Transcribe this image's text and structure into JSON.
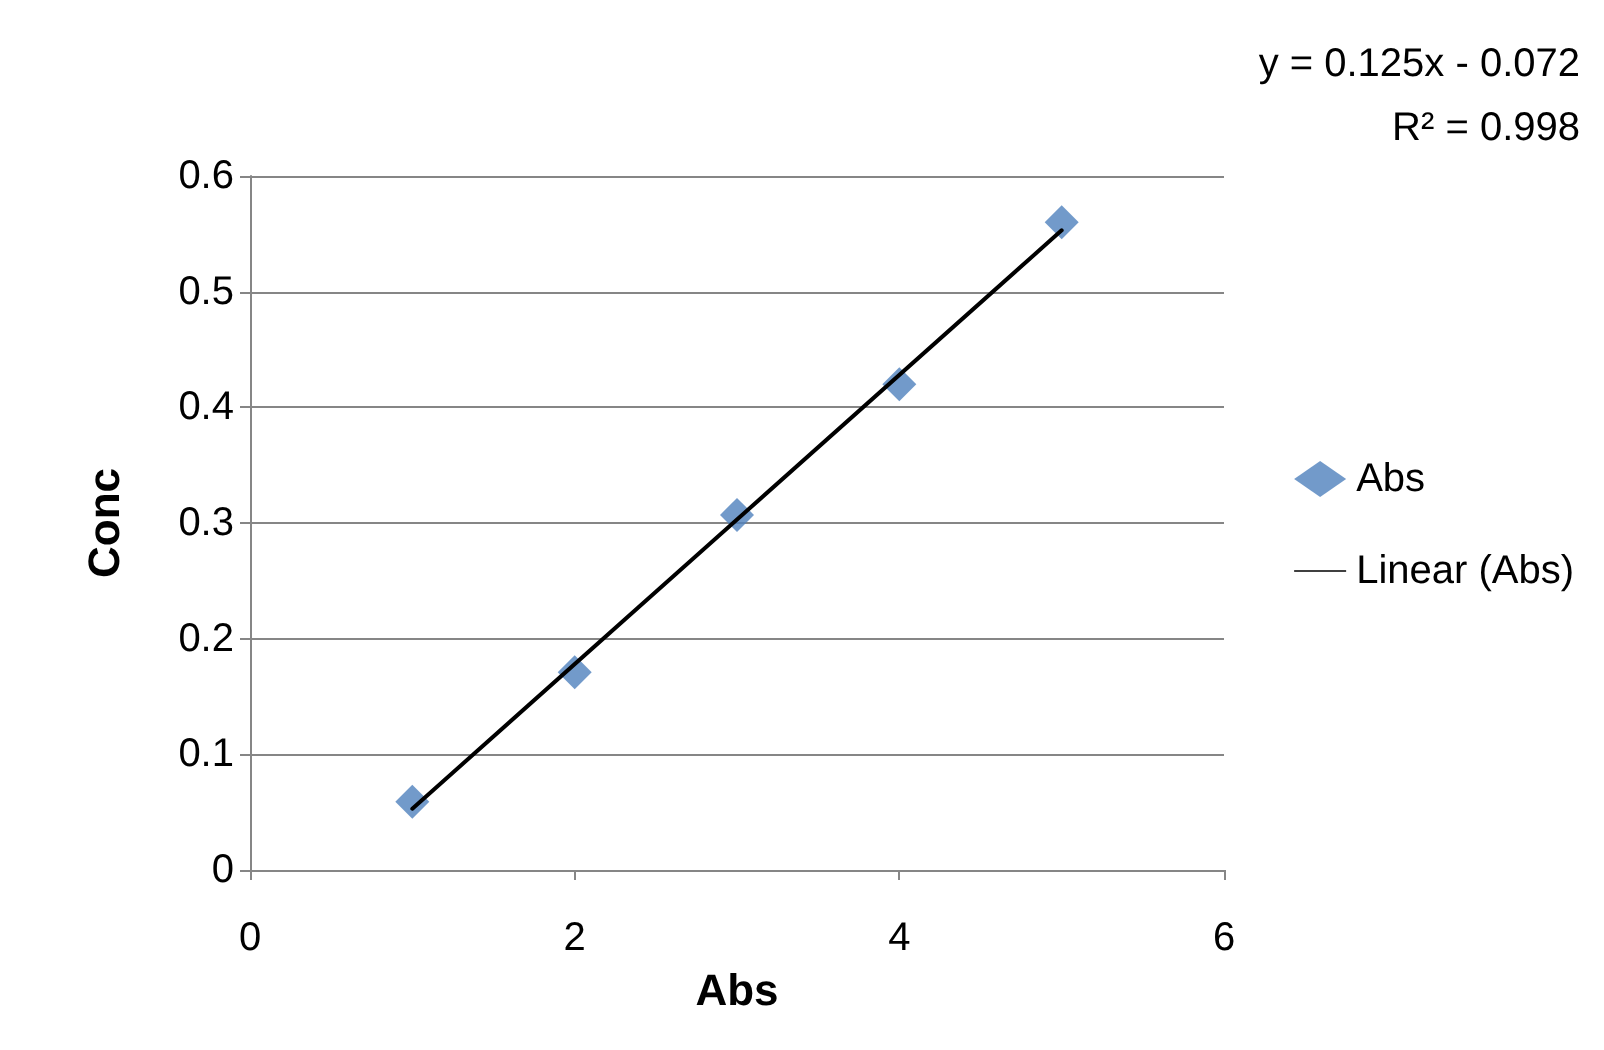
{
  "chart_data": {
    "type": "scatter",
    "xlabel": "Abs",
    "ylabel": "Conc",
    "annotations": [
      "y = 0.125x - 0.072",
      "R² = 0.998"
    ],
    "series": [
      {
        "name": "Abs",
        "type": "scatter",
        "color": "#4f81bd",
        "marker": "diamond",
        "x": [
          1,
          2,
          3,
          4,
          5
        ],
        "values": [
          0.059,
          0.171,
          0.307,
          0.42,
          0.56
        ]
      },
      {
        "name": "Linear (Abs)",
        "type": "line",
        "color": "#000000",
        "marker": "none",
        "line_style": "solid",
        "x": [
          1,
          5
        ],
        "values": [
          0.053,
          0.553
        ]
      }
    ],
    "xlim": [
      0,
      6
    ],
    "xticks": [
      0,
      2,
      4,
      6
    ],
    "ylim": [
      0,
      0.6
    ],
    "yticks": [
      0,
      0.1,
      0.2,
      0.3,
      0.4,
      0.5,
      0.6
    ],
    "grid": "y",
    "legend": "right"
  }
}
